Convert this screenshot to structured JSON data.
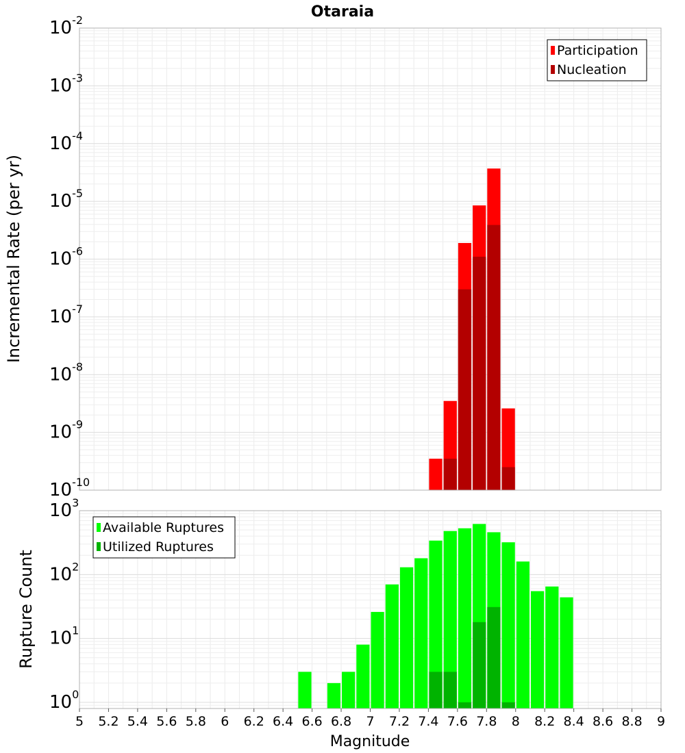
{
  "chart_data": [
    {
      "type": "bar",
      "title": "Otaraia",
      "xlabel": "",
      "ylabel": "Incremental Rate (per yr)",
      "yscale": "log",
      "ylim": [
        1e-10,
        0.01
      ],
      "xlim": [
        5,
        9
      ],
      "bar_width": 0.1,
      "grid": true,
      "legend_position": "top-right",
      "x": [
        7.45,
        7.55,
        7.65,
        7.75,
        7.85,
        7.95
      ],
      "series": [
        {
          "name": "Participation",
          "color": "#ff0000",
          "values": [
            3.5e-10,
            3.5e-09,
            1.9e-06,
            8.5e-06,
            3.7e-05,
            2.6e-09
          ]
        },
        {
          "name": "Nucleation",
          "color": "#b30000",
          "values": [
            0,
            3.5e-10,
            3e-07,
            1.1e-06,
            3.9e-06,
            2.5e-10
          ]
        }
      ]
    },
    {
      "type": "bar",
      "title": "",
      "xlabel": "Magnitude",
      "ylabel": "Rupture Count",
      "yscale": "log",
      "ylim": [
        0.8,
        1000
      ],
      "xlim": [
        5,
        9
      ],
      "bar_width": 0.1,
      "grid": true,
      "legend_position": "top-left",
      "x_ticks": [
        "5",
        "5.2",
        "5.4",
        "5.6",
        "5.8",
        "6",
        "6.2",
        "6.4",
        "6.6",
        "6.8",
        "7",
        "7.2",
        "7.4",
        "7.6",
        "7.8",
        "8",
        "8.2",
        "8.4",
        "8.6",
        "8.8",
        "9"
      ],
      "x": [
        6.55,
        6.75,
        6.85,
        6.95,
        7.05,
        7.15,
        7.25,
        7.35,
        7.45,
        7.55,
        7.65,
        7.75,
        7.85,
        7.95,
        8.05,
        8.15,
        8.25,
        8.35
      ],
      "series": [
        {
          "name": "Available Ruptures",
          "color": "#00ff00",
          "values": [
            3,
            2,
            3,
            8,
            26,
            70,
            130,
            180,
            340,
            480,
            530,
            620,
            460,
            320,
            160,
            55,
            65,
            44
          ]
        },
        {
          "name": "Utilized Ruptures",
          "color": "#00b300",
          "values": [
            0,
            0,
            0,
            0,
            0,
            0,
            0,
            0,
            3,
            3,
            1,
            18,
            31,
            1,
            0,
            0,
            0,
            0
          ]
        }
      ]
    }
  ]
}
